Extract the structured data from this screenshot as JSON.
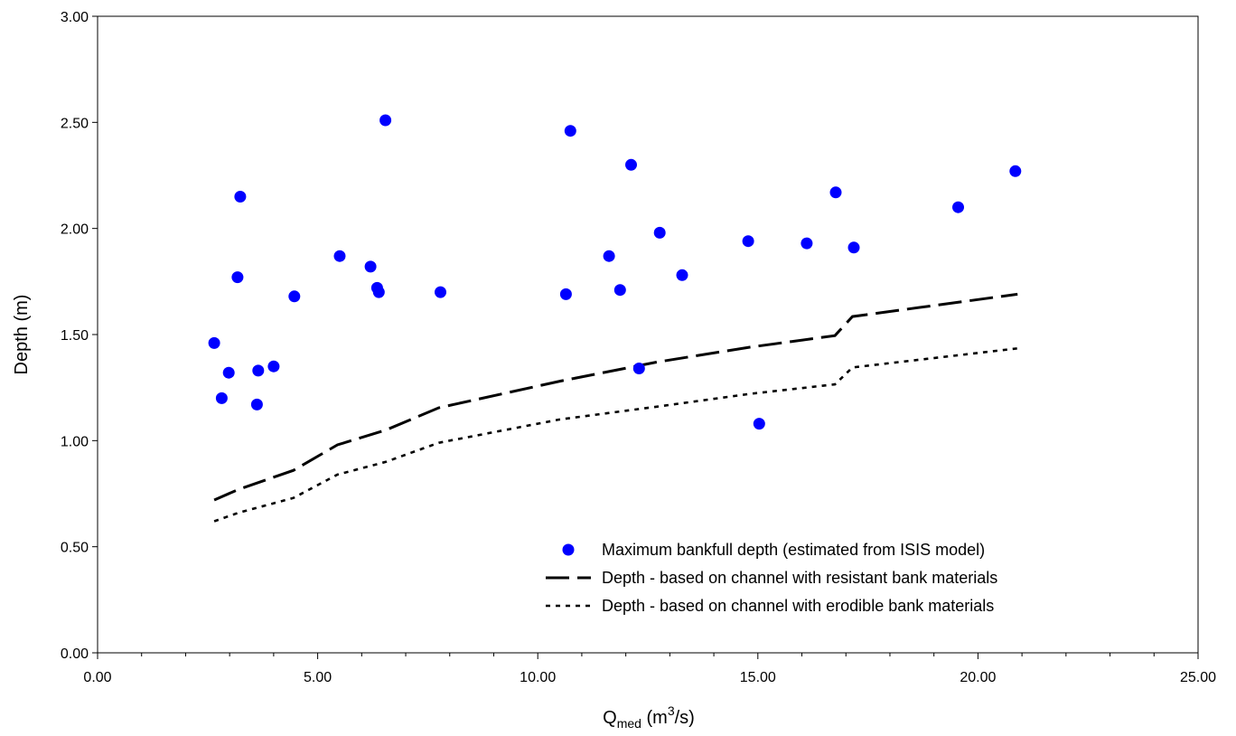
{
  "chart_data": {
    "type": "scatter",
    "xlabel": {
      "main": "Q",
      "sub": "med",
      "pre_sup": " (m",
      "sup": "3",
      "post": "/s)"
    },
    "ylabel": "Depth (m)",
    "xlim": [
      0,
      25
    ],
    "ylim": [
      0,
      3
    ],
    "x_ticks": [
      "0.00",
      "5.00",
      "10.00",
      "15.00",
      "20.00",
      "25.00"
    ],
    "y_ticks": [
      "0.00",
      "0.50",
      "1.00",
      "1.50",
      "2.00",
      "2.50",
      "3.00"
    ],
    "grid": false,
    "legend_position": "lower-right",
    "series": [
      {
        "name": "Maximum bankfull depth (estimated from ISIS model)",
        "kind": "scatter",
        "color": "#0000ff",
        "points": [
          [
            2.65,
            1.46
          ],
          [
            2.82,
            1.2
          ],
          [
            2.98,
            1.32
          ],
          [
            3.18,
            1.77
          ],
          [
            3.24,
            2.15
          ],
          [
            3.62,
            1.17
          ],
          [
            3.65,
            1.33
          ],
          [
            4.0,
            1.35
          ],
          [
            4.47,
            1.68
          ],
          [
            5.5,
            1.87
          ],
          [
            6.2,
            1.82
          ],
          [
            6.35,
            1.72
          ],
          [
            6.39,
            1.7
          ],
          [
            6.54,
            2.51
          ],
          [
            7.79,
            1.7
          ],
          [
            10.64,
            1.69
          ],
          [
            10.74,
            2.46
          ],
          [
            11.62,
            1.87
          ],
          [
            11.87,
            1.71
          ],
          [
            12.12,
            2.3
          ],
          [
            12.3,
            1.34
          ],
          [
            12.77,
            1.98
          ],
          [
            13.28,
            1.78
          ],
          [
            14.78,
            1.94
          ],
          [
            15.03,
            1.08
          ],
          [
            16.11,
            1.93
          ],
          [
            16.77,
            2.17
          ],
          [
            17.18,
            1.91
          ],
          [
            19.55,
            2.1
          ],
          [
            20.85,
            2.27
          ]
        ]
      },
      {
        "name": "Depth - based on channel with resistant bank materials",
        "kind": "line",
        "dash": "long",
        "color": "#000000",
        "points": [
          [
            2.65,
            0.72
          ],
          [
            3.2,
            0.77
          ],
          [
            4.45,
            0.86
          ],
          [
            5.45,
            0.98
          ],
          [
            6.55,
            1.05
          ],
          [
            7.75,
            1.155
          ],
          [
            10.5,
            1.28
          ],
          [
            12.7,
            1.37
          ],
          [
            14.8,
            1.44
          ],
          [
            16.75,
            1.495
          ],
          [
            17.15,
            1.585
          ],
          [
            20.9,
            1.69
          ]
        ]
      },
      {
        "name": "Depth - based on channel with erodible bank materials",
        "kind": "line",
        "dash": "dot",
        "color": "#000000",
        "points": [
          [
            2.65,
            0.62
          ],
          [
            3.2,
            0.66
          ],
          [
            4.45,
            0.73
          ],
          [
            5.45,
            0.84
          ],
          [
            6.55,
            0.9
          ],
          [
            7.75,
            0.99
          ],
          [
            10.5,
            1.1
          ],
          [
            12.7,
            1.16
          ],
          [
            14.8,
            1.22
          ],
          [
            16.75,
            1.265
          ],
          [
            17.15,
            1.345
          ],
          [
            20.9,
            1.435
          ]
        ]
      }
    ]
  }
}
